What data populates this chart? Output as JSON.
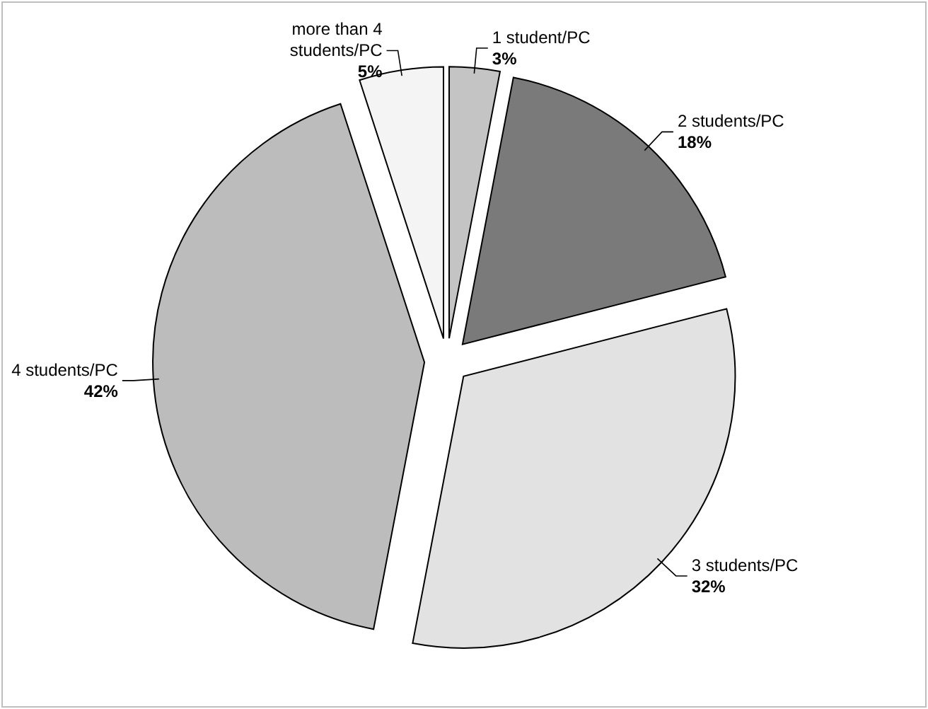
{
  "chart_data": {
    "type": "pie",
    "categories": [
      "1 student/PC",
      "2 students/PC",
      "3 students/PC",
      "4 students/PC",
      "more than 4 students/PC"
    ],
    "values": [
      3,
      18,
      32,
      42,
      5
    ],
    "value_labels": [
      "3%",
      "18%",
      "32%",
      "42%",
      "5%"
    ],
    "colors": [
      "#c4c4c4",
      "#7a7a7a",
      "#e2e2e2",
      "#bcbcbc",
      "#f4f4f4"
    ]
  }
}
